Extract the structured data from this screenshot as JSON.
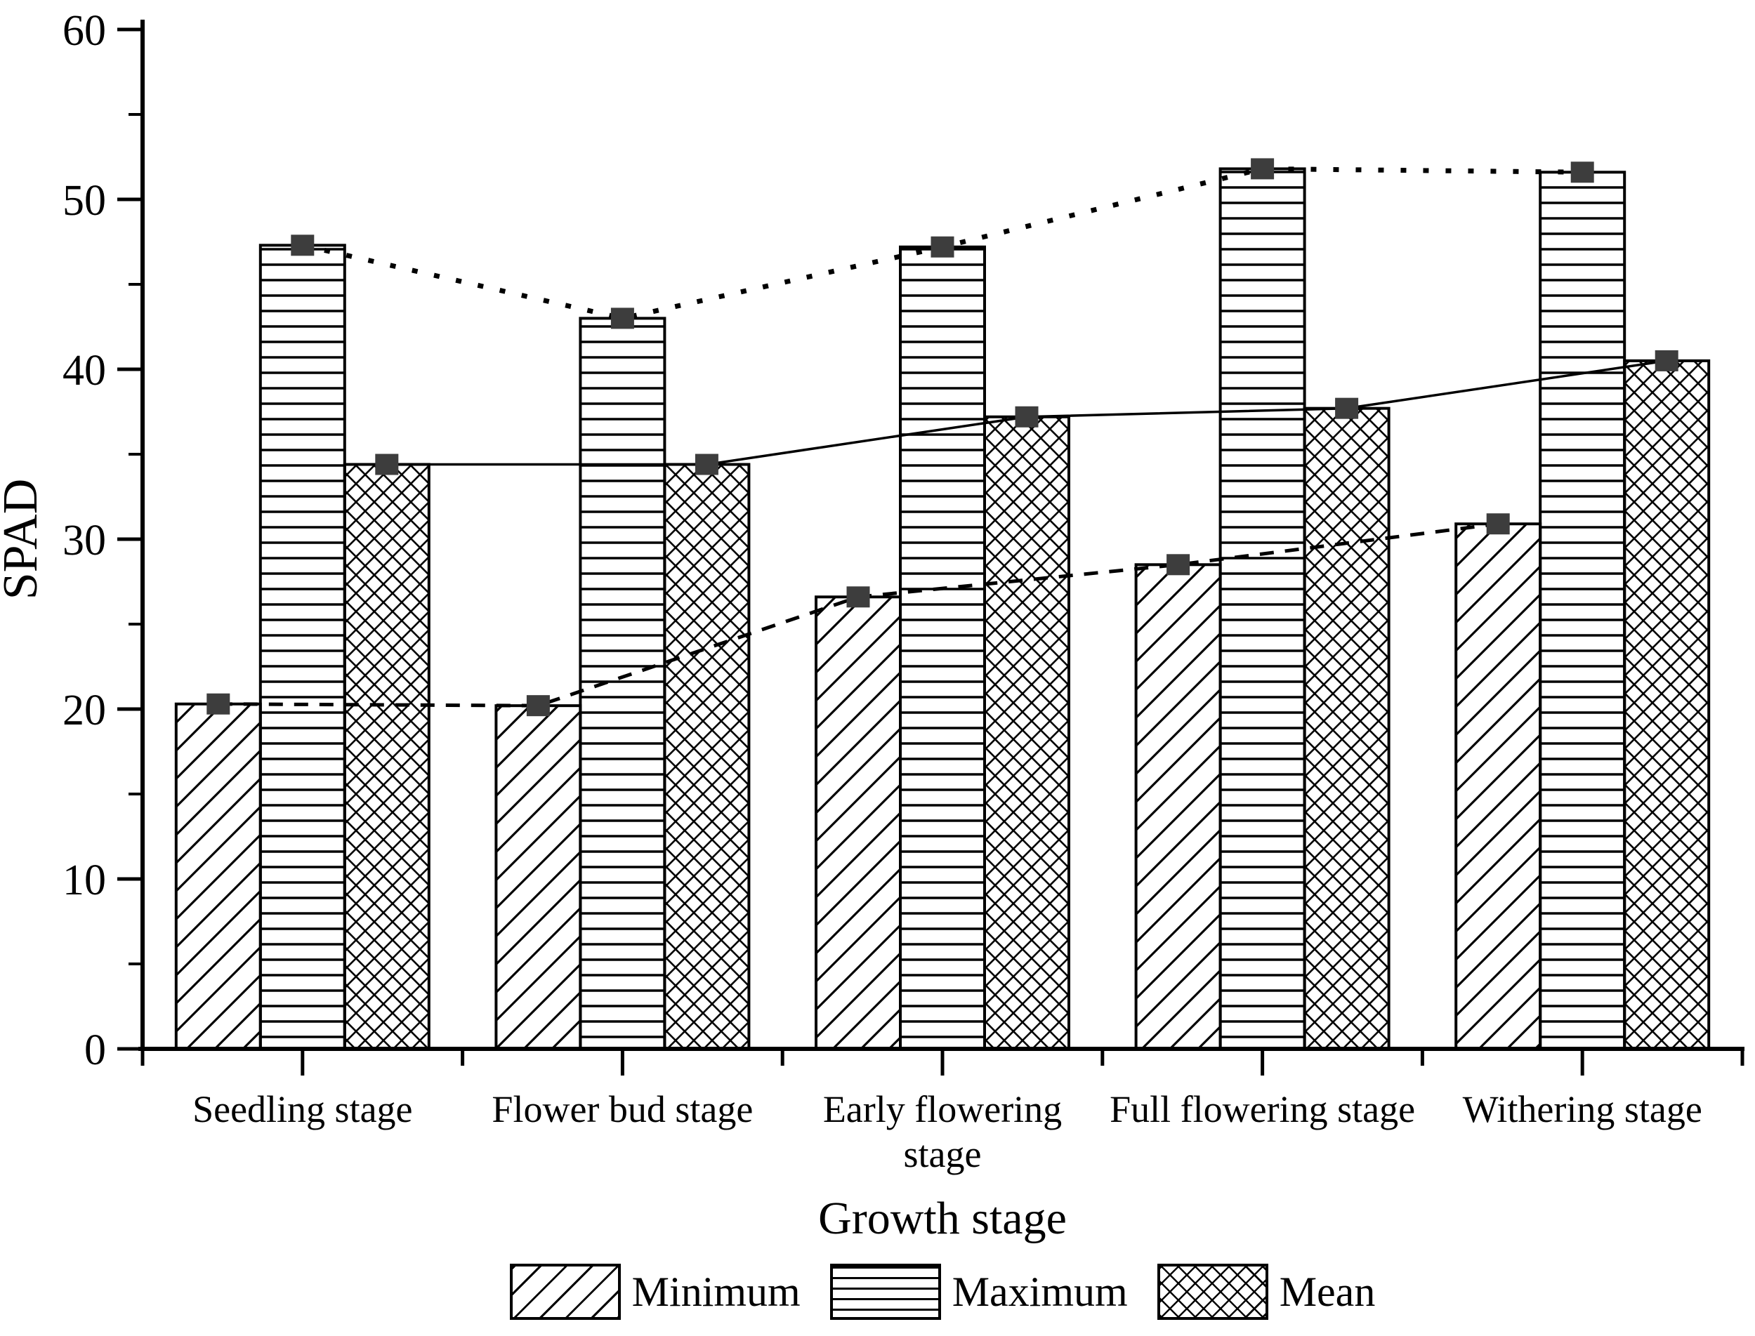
{
  "chart_data": {
    "type": "bar",
    "title": "",
    "categories": [
      "Seedling stage",
      "Flower bud stage",
      "Early flowering stage",
      "Full flowering stage",
      "Withering stage"
    ],
    "series": [
      {
        "name": "Minimum",
        "values": [
          20.3,
          20.2,
          26.6,
          28.5,
          30.9
        ],
        "pattern": "diagonal-hatch",
        "line": "dashed"
      },
      {
        "name": "Maximum",
        "values": [
          47.3,
          43.0,
          47.2,
          51.8,
          51.6
        ],
        "pattern": "horizontal-hatch",
        "line": "dotted"
      },
      {
        "name": "Mean",
        "values": [
          34.4,
          34.4,
          37.2,
          37.7,
          40.5
        ],
        "pattern": "cross-hatch",
        "line": "solid"
      }
    ],
    "xlabel": "Growth stage",
    "ylabel": "SPAD",
    "ylim": [
      0,
      60
    ],
    "yticks": [
      0,
      10,
      20,
      30,
      40,
      50,
      60
    ],
    "minor_tick_step": 5,
    "grid": false,
    "legend_position": "bottom",
    "marker": {
      "shape": "square",
      "color": "#3d3d3d"
    },
    "colors": {
      "background": "#ffffff",
      "bar_fill": "#ffffff",
      "bar_stroke": "#000000",
      "axis": "#000000",
      "text": "#000000"
    }
  }
}
